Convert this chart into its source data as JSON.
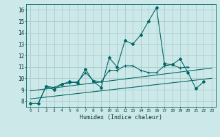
{
  "xlabel": "Humidex (Indice chaleur)",
  "background_color": "#cce8e8",
  "grid_color": "#aacccc",
  "line_color": "#006666",
  "xlim": [
    -0.5,
    23.5
  ],
  "ylim": [
    7.5,
    16.5
  ],
  "xticks": [
    0,
    1,
    2,
    3,
    4,
    5,
    6,
    7,
    8,
    9,
    10,
    11,
    12,
    13,
    14,
    15,
    16,
    17,
    18,
    19,
    20,
    21,
    22,
    23
  ],
  "yticks": [
    8,
    9,
    10,
    11,
    12,
    13,
    14,
    15,
    16
  ],
  "series1_x": [
    0,
    1,
    2,
    3,
    4,
    5,
    6,
    7,
    8,
    9,
    10,
    11,
    12,
    13,
    14,
    15,
    16,
    17,
    18,
    19,
    20,
    21,
    22
  ],
  "series1_y": [
    7.8,
    7.8,
    9.3,
    9.0,
    9.5,
    9.7,
    9.6,
    10.8,
    9.7,
    9.2,
    11.8,
    11.0,
    13.3,
    13.0,
    13.8,
    15.0,
    16.2,
    11.3,
    11.2,
    11.7,
    10.5,
    9.1,
    9.7
  ],
  "series2_x": [
    0,
    1,
    2,
    3,
    4,
    5,
    6,
    7,
    8,
    9,
    10,
    11,
    12,
    13,
    14,
    15,
    16,
    17,
    18,
    19,
    20
  ],
  "series2_y": [
    7.8,
    7.8,
    9.3,
    9.2,
    9.5,
    9.6,
    9.7,
    10.5,
    9.8,
    9.7,
    10.7,
    10.7,
    11.1,
    11.1,
    10.7,
    10.5,
    10.5,
    11.1,
    11.2,
    10.9,
    11.0
  ],
  "series3_x": [
    0,
    23
  ],
  "series3_y": [
    8.2,
    10.0
  ],
  "series4_x": [
    0,
    23
  ],
  "series4_y": [
    8.9,
    10.9
  ]
}
